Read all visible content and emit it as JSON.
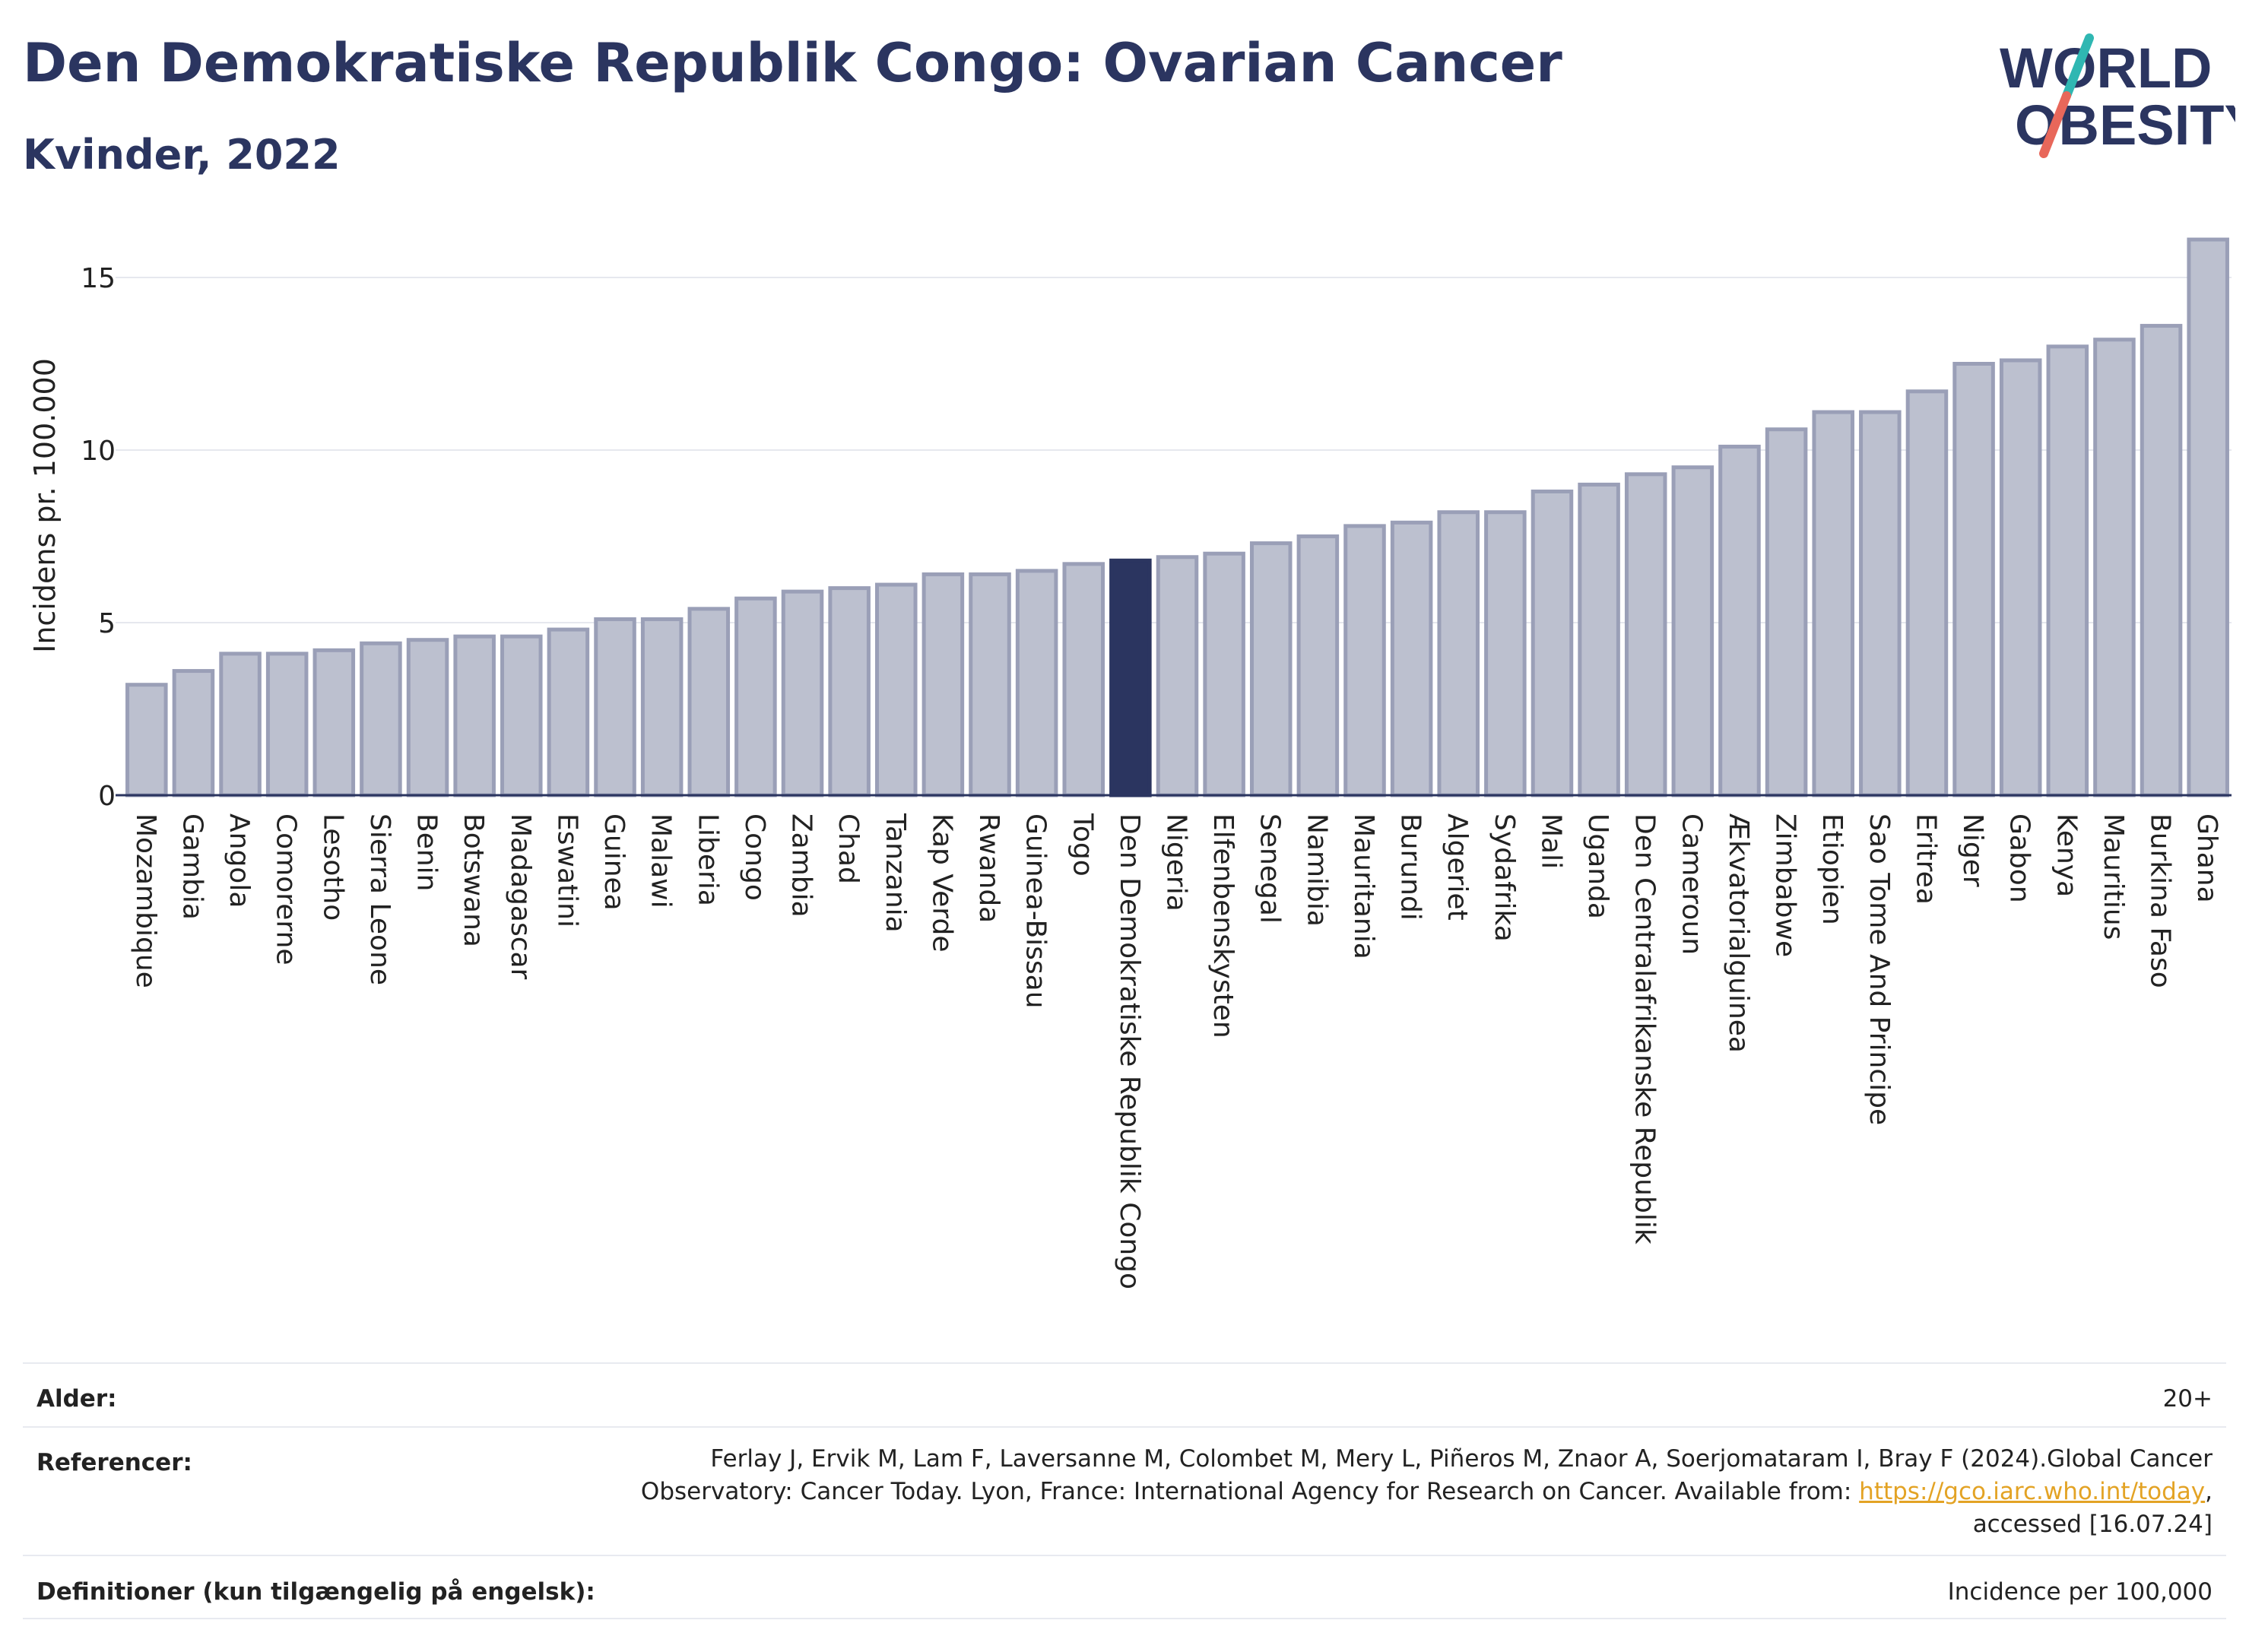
{
  "title": "Den Demokratiske Republik Congo: Ovarian Cancer",
  "subtitle": "Kvinder, 2022",
  "logo": {
    "line1": "WORLD",
    "line2": "OBESITY",
    "accent_teal": "#2fb7b2",
    "accent_red": "#e8675a"
  },
  "colors": {
    "bar": "#bcc0cf",
    "bar_stroke": "#9a9fb7",
    "highlight": "#2b3560",
    "grid": "#e6e8ee",
    "text": "#2b3560"
  },
  "chart_data": {
    "type": "bar",
    "ylabel": "Incidens pr. 100.000",
    "ylim": [
      0,
      16.5
    ],
    "yticks": [
      0,
      5,
      10,
      15
    ],
    "grid": true,
    "highlight": "Den Demokratiske Republik Congo",
    "categories": [
      "Mozambique",
      "Gambia",
      "Angola",
      "Comorerne",
      "Lesotho",
      "Sierra Leone",
      "Benin",
      "Botswana",
      "Madagascar",
      "Eswatini",
      "Guinea",
      "Malawi",
      "Liberia",
      "Congo",
      "Zambia",
      "Chad",
      "Tanzania",
      "Kap Verde",
      "Rwanda",
      "Guinea-Bissau",
      "Togo",
      "Den Demokratiske Republik Congo",
      "Nigeria",
      "Elfenbenskysten",
      "Senegal",
      "Namibia",
      "Mauritania",
      "Burundi",
      "Algeriet",
      "Sydafrika",
      "Mali",
      "Uganda",
      "Den Centralafrikanske Republik",
      "Cameroun",
      "Ækvatorialguinea",
      "Zimbabwe",
      "Etiopien",
      "Sao Tome And Principe",
      "Eritrea",
      "Niger",
      "Gabon",
      "Kenya",
      "Mauritius",
      "Burkina Faso",
      "Ghana"
    ],
    "values": [
      3.2,
      3.6,
      4.1,
      4.1,
      4.2,
      4.4,
      4.5,
      4.6,
      4.6,
      4.8,
      5.1,
      5.1,
      5.4,
      5.7,
      5.9,
      6.0,
      6.1,
      6.4,
      6.4,
      6.5,
      6.7,
      6.8,
      6.9,
      7.0,
      7.3,
      7.5,
      7.8,
      7.9,
      8.2,
      8.2,
      8.8,
      9.0,
      9.3,
      9.5,
      10.1,
      10.6,
      11.1,
      11.1,
      11.7,
      12.5,
      12.6,
      13.0,
      13.2,
      13.6,
      16.1
    ]
  },
  "meta": {
    "age_label": "Alder:",
    "age_value": "20+",
    "ref_label": "Referencer:",
    "ref_text_1": "Ferlay J, Ervik M, Lam F, Laversanne M, Colombet M, Mery L, Piñeros M, Znaor A, Soerjomataram I, Bray F (2024).Global Cancer Observatory: Cancer Today. Lyon, France: International Agency for Research on Cancer. Available from: ",
    "ref_link": "https://gco.iarc.who.int/today",
    "ref_text_2": ", accessed [16.07.24]",
    "def_label": "Definitioner (kun tilgængelig på engelsk):",
    "def_value": "Incidence per 100,000"
  }
}
